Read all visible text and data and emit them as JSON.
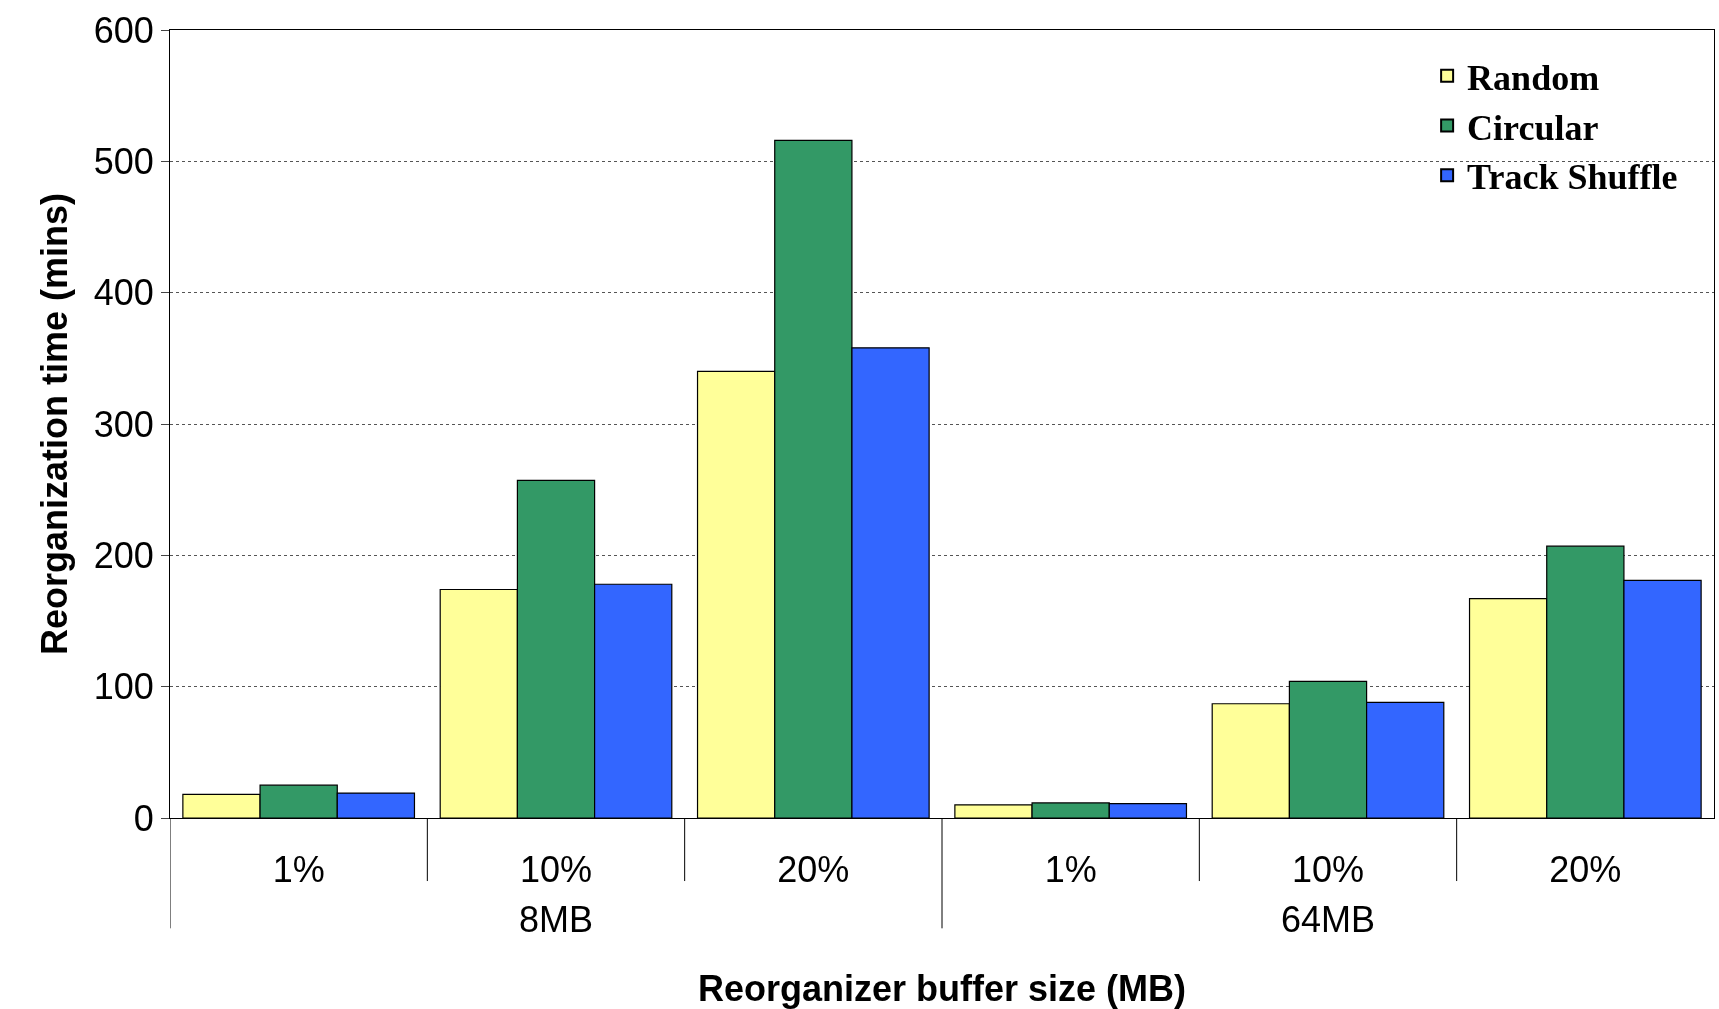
{
  "chart_data": {
    "type": "bar",
    "xlabel": "Reorganizer buffer size (MB)",
    "ylabel": "Reorganization time (mins)",
    "categories": [
      "1%",
      "10%",
      "20%",
      "1%",
      "10%",
      "20%"
    ],
    "series": [
      {
        "name": "Random",
        "color": "#ffff99",
        "values": [
          18,
          174,
          340,
          10,
          87,
          167
        ]
      },
      {
        "name": "Circular",
        "color": "#339966",
        "values": [
          25,
          257,
          516,
          11.5,
          104,
          207
        ]
      },
      {
        "name": "Track Shuffle",
        "color": "#3366ff",
        "values": [
          19,
          178,
          358,
          11,
          88,
          181
        ]
      }
    ],
    "annotations": [
      "8MB",
      "64MB"
    ],
    "ylim": [
      0,
      600
    ],
    "yticks": [
      0,
      100,
      200,
      300,
      400,
      500,
      600
    ],
    "grid": "y",
    "legend": "top right"
  }
}
